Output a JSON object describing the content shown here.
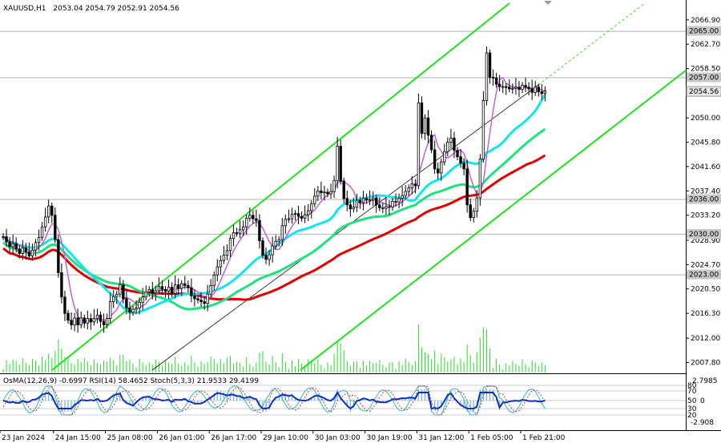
{
  "chart_data": {
    "type": "candlestick",
    "symbol_header": {
      "symbol": "XAUUSD,H1",
      "ohlc": "2053.04 2054.79 2052.91 2054.56"
    },
    "price_axis": {
      "ylim": [
        2006.5,
        2069.5
      ],
      "ticks": [
        "2066.90",
        "2062.70",
        "2058.50",
        "2054.35",
        "2050.00",
        "2045.80",
        "2041.60",
        "2037.40",
        "2033.20",
        "2028.90",
        "2024.70",
        "2020.50",
        "2016.30",
        "2012.00",
        "2007.80"
      ],
      "tick_values": [
        2066.9,
        2062.7,
        2058.5,
        2054.35,
        2050.0,
        2045.8,
        2041.6,
        2037.4,
        2033.2,
        2028.9,
        2024.7,
        2020.5,
        2016.3,
        2012.0,
        2007.8
      ]
    },
    "levels": [
      {
        "label": "2065.00",
        "value": 2065.0,
        "color": "#b0b0b0"
      },
      {
        "label": "2057.00",
        "value": 2057.0,
        "color": "#b0b0b0"
      },
      {
        "label": "2036.00",
        "value": 2036.0,
        "color": "#b0b0b0"
      },
      {
        "label": "2030.00",
        "value": 2030.0,
        "color": "#b0b0b0"
      },
      {
        "label": "2023.00",
        "value": 2023.0,
        "color": "#b0b0b0"
      }
    ],
    "current_price": {
      "label": "2054.56",
      "value": 2054.56
    },
    "time_axis": {
      "labels": [
        "23 Jan 2024",
        "24 Jan 15:00",
        "25 Jan 08:00",
        "26 Jan 01:00",
        "26 Jan 17:00",
        "29 Jan 10:00",
        "30 Jan 03:00",
        "30 Jan 19:00",
        "31 Jan 12:00",
        "1 Feb 05:00",
        "1 Feb 21:00"
      ],
      "bar_index": [
        0,
        16,
        32,
        48,
        64,
        80,
        96,
        112,
        128,
        144,
        160
      ]
    },
    "closes": [
      2029.5,
      2028.6,
      2027.8,
      2028.3,
      2027.4,
      2026.6,
      2027.6,
      2026.9,
      2026.2,
      2027.2,
      2028.5,
      2029.4,
      2031.2,
      2032.9,
      2034.8,
      2033.2,
      2029.0,
      2023.3,
      2019.1,
      2016.3,
      2015.1,
      2014.3,
      2015.5,
      2014.3,
      2015.5,
      2014.6,
      2015.4,
      2014.8,
      2015.4,
      2016.0,
      2014.9,
      2014.3,
      2015.4,
      2018.3,
      2019.2,
      2019.6,
      2021.2,
      2018.8,
      2017.2,
      2016.5,
      2017.0,
      2017.2,
      2018.2,
      2019.1,
      2020.0,
      2020.4,
      2019.8,
      2020.2,
      2020.9,
      2020.4,
      2020.1,
      2020.8,
      2019.7,
      2021.2,
      2020.6,
      2021.4,
      2021.1,
      2020.7,
      2019.3,
      2018.8,
      2018.6,
      2018.3,
      2018.0,
      2019.6,
      2021.1,
      2022.9,
      2024.3,
      2025.4,
      2026.3,
      2027.1,
      2029.2,
      2030.2,
      2030.1,
      2030.7,
      2031.2,
      2032.7,
      2033.2,
      2032.6,
      2032.3,
      2028.8,
      2026.3,
      2025.6,
      2026.4,
      2027.9,
      2028.7,
      2029.0,
      2031.4,
      2032.5,
      2032.6,
      2033.4,
      2033.5,
      2033.0,
      2032.7,
      2033.3,
      2034.0,
      2035.2,
      2036.5,
      2037.4,
      2037.1,
      2037.2,
      2036.9,
      2037.3,
      2039.2,
      2045.1,
      2039.1,
      2036.1,
      2035.0,
      2034.3,
      2034.6,
      2035.8,
      2035.4,
      2036.1,
      2035.8,
      2035.9,
      2036.2,
      2035.0,
      2034.5,
      2034.4,
      2034.7,
      2034.6,
      2035.6,
      2035.5,
      2036.1,
      2036.6,
      2037.3,
      2037.9,
      2038.6,
      2038.3,
      2052.6,
      2047.3,
      2050.0,
      2047.0,
      2044.5,
      2041.2,
      2040.5,
      2042.4,
      2044.2,
      2045.8,
      2046.5,
      2044.4,
      2043.3,
      2042.2,
      2041.2,
      2035.0,
      2032.8,
      2033.9,
      2036.2,
      2042.9,
      2053.0,
      2061.2,
      2057.0,
      2056.9,
      2055.8,
      2055.4,
      2055.4,
      2055.3,
      2055.0,
      2055.1,
      2055.3,
      2054.9,
      2055.6,
      2055.3,
      2055.0,
      2054.4,
      2055.3,
      2054.5,
      2054.2,
      2054.6
    ],
    "indicators": [
      {
        "name": "MA200",
        "color": "#e00000"
      },
      {
        "name": "MA144",
        "color": "#20e080"
      },
      {
        "name": "MA50",
        "color": "#10e6ee"
      },
      {
        "name": "MA20",
        "color": "#c060e0"
      },
      {
        "name": "channel",
        "color": "#22e022"
      }
    ],
    "oscillator": {
      "header": "OsMA(12,26,9) -0.6997 RSI(14) 58.4652 Stoch(5,3,3) 21.9533 29.4199",
      "ylim_labels": [
        "2.7985",
        "-2.908"
      ],
      "ticks": [
        "80",
        "70",
        "50",
        "30",
        "20"
      ],
      "right_mark": "0"
    }
  }
}
